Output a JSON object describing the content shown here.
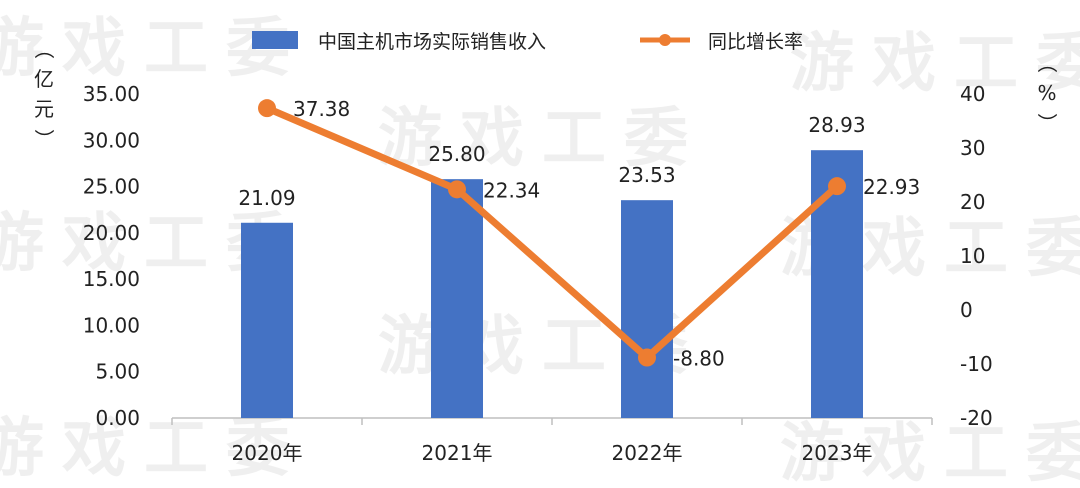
{
  "watermark": "游戏工委",
  "colors": {
    "bar": "#4472C4",
    "line": "#ED7D31",
    "axis": "#BFBFBF"
  },
  "chart_data": {
    "type": "bar",
    "categories": [
      "2020年",
      "2021年",
      "2022年",
      "2023年"
    ],
    "series": [
      {
        "name": "中国主机市场实际销售收入",
        "type": "bar",
        "axis": "left",
        "values": [
          21.09,
          25.8,
          23.53,
          28.93
        ],
        "labels": [
          "21.09",
          "25.80",
          "23.53",
          "28.93"
        ]
      },
      {
        "name": "同比增长率",
        "type": "line",
        "axis": "right",
        "values": [
          37.38,
          22.34,
          -8.8,
          22.93
        ],
        "labels": [
          "37.38",
          "22.34",
          "-8.80",
          "22.93"
        ]
      }
    ],
    "y_left": {
      "unit": "（亿元）",
      "min": 0,
      "max": 35,
      "ticks": [
        "0.00",
        "5.00",
        "10.00",
        "15.00",
        "20.00",
        "25.00",
        "30.00",
        "35.00"
      ]
    },
    "y_right": {
      "unit": "（%）",
      "min": -20,
      "max": 40,
      "ticks": [
        "-20",
        "-10",
        "0",
        "10",
        "20",
        "30",
        "40"
      ]
    },
    "legend_position": "top",
    "grid": false
  }
}
